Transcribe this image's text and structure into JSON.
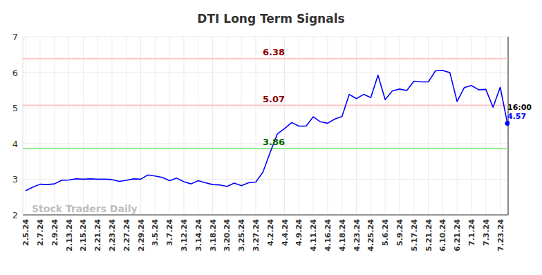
{
  "chart_data": {
    "type": "line",
    "title": "DTI Long Term Signals",
    "categories": [
      "2.5.24",
      null,
      "2.7.24",
      null,
      "2.9.24",
      null,
      "2.13.24",
      null,
      "2.15.24",
      null,
      "2.21.24",
      null,
      "2.23.24",
      null,
      "2.27.24",
      null,
      "2.29.24",
      null,
      "3.5.24",
      null,
      "3.7.24",
      null,
      "3.12.24",
      null,
      "3.14.24",
      null,
      "3.18.24",
      null,
      "3.20.24",
      null,
      "3.25.24",
      null,
      "3.27.24",
      null,
      "4.2.24",
      null,
      "4.4.24",
      null,
      "4.9.24",
      null,
      "4.11.24",
      null,
      "4.16.24",
      null,
      "4.18.24",
      null,
      "4.23.24",
      null,
      "4.25.24",
      null,
      "5.6.24",
      null,
      "5.9.24",
      null,
      "5.17.24",
      null,
      "5.21.24",
      null,
      "6.10.24",
      null,
      "6.21.24",
      null,
      "7.1.24",
      null,
      "7.3.24",
      null,
      "7.23.24",
      null
    ],
    "series": [
      {
        "name": "DTI",
        "color": "#0000ff",
        "values": [
          2.68,
          2.78,
          2.86,
          2.85,
          2.87,
          2.97,
          2.98,
          3.01,
          3.0,
          3.01,
          3.0,
          3.0,
          2.99,
          2.94,
          2.97,
          3.01,
          3.0,
          3.12,
          3.09,
          3.05,
          2.96,
          3.03,
          2.93,
          2.87,
          2.96,
          2.9,
          2.85,
          2.84,
          2.8,
          2.89,
          2.82,
          2.9,
          2.92,
          3.2,
          3.75,
          4.27,
          4.42,
          4.59,
          4.49,
          4.49,
          4.75,
          4.61,
          4.57,
          4.69,
          4.76,
          5.38,
          5.26,
          5.38,
          5.29,
          5.92,
          5.23,
          5.48,
          5.53,
          5.49,
          5.75,
          5.73,
          5.73,
          6.04,
          6.05,
          5.99,
          5.18,
          5.57,
          5.63,
          5.51,
          5.52,
          5.02,
          5.58,
          4.57
        ]
      }
    ],
    "reference_lines": [
      {
        "value": 6.38,
        "color": "#ffc4c4",
        "label_color": "#8b0000"
      },
      {
        "value": 5.07,
        "color": "#ffc4c4",
        "label_color": "#8b0000"
      },
      {
        "value": 3.86,
        "color": "#90ee90",
        "label_color": "#006400"
      }
    ],
    "last_time_label": "16:00",
    "watermark": "Stock Traders Daily",
    "ylim": [
      2,
      7
    ],
    "yticks": [
      2,
      3,
      4,
      5,
      6,
      7
    ],
    "grid": true
  }
}
